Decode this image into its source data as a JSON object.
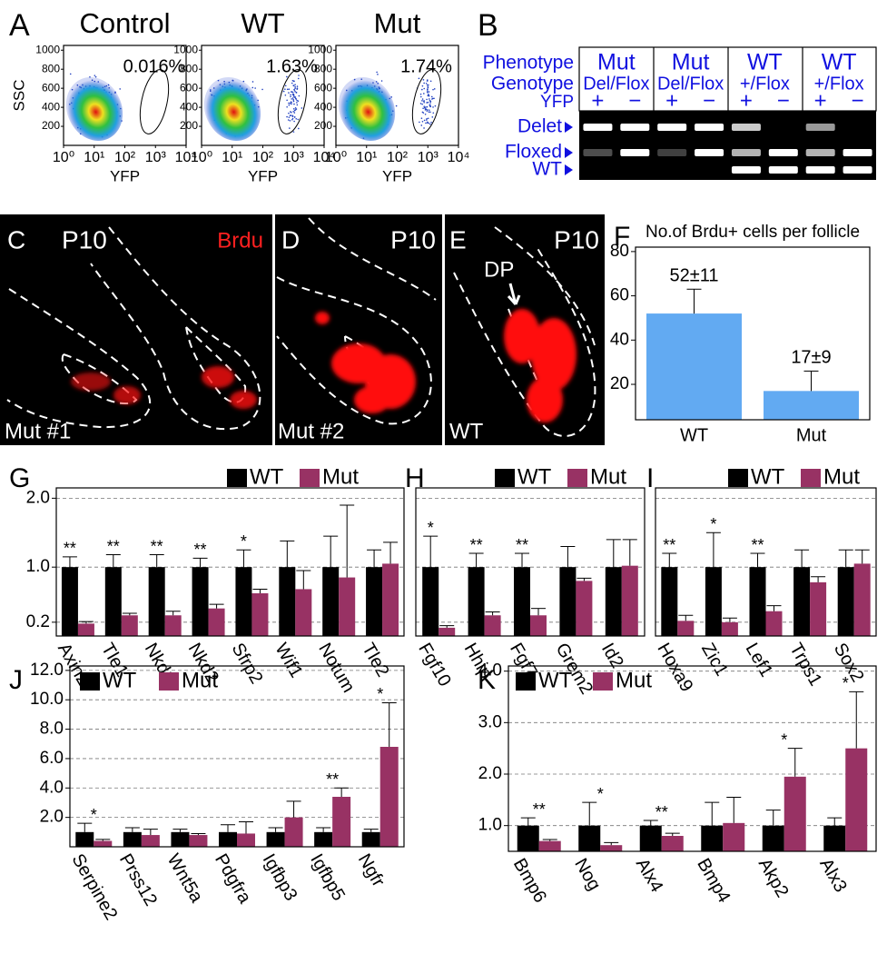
{
  "panel_labels": [
    "A",
    "B",
    "F",
    "G",
    "H",
    "I",
    "J",
    "K"
  ],
  "gel": {
    "row_labels": [
      "Phenotype",
      "Genotype",
      "YFP"
    ],
    "band_labels": [
      "Delet",
      "Floxed",
      "WT"
    ],
    "groups": [
      {
        "phenotype": "Mut",
        "genotype": "Del/Flox",
        "lanes": [
          "+",
          "−"
        ]
      },
      {
        "phenotype": "Mut",
        "genotype": "Del/Flox",
        "lanes": [
          "+",
          "−"
        ]
      },
      {
        "phenotype": "WT",
        "genotype": "+/Flox",
        "lanes": [
          "+",
          "−"
        ]
      },
      {
        "phenotype": "WT",
        "genotype": "+/Flox",
        "lanes": [
          "+",
          "−"
        ]
      }
    ]
  },
  "images": [
    {
      "label": "C",
      "stage": "P10",
      "stain": "Brdu",
      "sample": "Mut #1"
    },
    {
      "label": "D",
      "stage": "P10",
      "sample": "Mut #2"
    },
    {
      "label": "E",
      "stage": "P10",
      "marker": "DP",
      "sample": "WT"
    }
  ],
  "chart_data": [
    {
      "type": "scatter",
      "title": "Control",
      "annotation": "0.016%",
      "y_label": "SSC",
      "x_label": "YFP",
      "ylim": [
        0,
        1050
      ],
      "yticks": [
        200,
        400,
        600,
        800,
        1000
      ],
      "xscale": "log",
      "xlim": [
        1,
        10000
      ],
      "xticks": [
        {
          "value": 1,
          "label": "10⁰"
        },
        {
          "value": 10,
          "label": "10¹"
        },
        {
          "value": 100,
          "label": "10²"
        },
        {
          "value": 1000,
          "label": "10³"
        },
        {
          "value": 10000,
          "label": "10⁴"
        }
      ]
    },
    {
      "type": "scatter",
      "title": "WT",
      "annotation": "1.63%",
      "x_label": "YFP",
      "ylim": [
        0,
        1050
      ],
      "yticks": [
        200,
        400,
        600,
        800,
        1000
      ],
      "xscale": "log",
      "xlim": [
        1,
        10000
      ],
      "xticks": [
        {
          "value": 1,
          "label": "10⁰"
        },
        {
          "value": 10,
          "label": "10¹"
        },
        {
          "value": 100,
          "label": "10²"
        },
        {
          "value": 1000,
          "label": "10³"
        },
        {
          "value": 10000,
          "label": "10⁴"
        }
      ]
    },
    {
      "type": "scatter",
      "title": "Mut",
      "annotation": "1.74%",
      "x_label": "YFP",
      "ylim": [
        0,
        1050
      ],
      "yticks": [
        200,
        400,
        600,
        800,
        1000
      ],
      "xscale": "log",
      "xlim": [
        1,
        10000
      ],
      "xticks": [
        {
          "value": 1,
          "label": "10⁰"
        },
        {
          "value": 10,
          "label": "10¹"
        },
        {
          "value": 100,
          "label": "10²"
        },
        {
          "value": 1000,
          "label": "10³"
        },
        {
          "value": 10000,
          "label": "10⁴"
        }
      ]
    },
    {
      "type": "bar",
      "title": "No.of Brdu+ cells per follicle",
      "categories": [
        "WT",
        "Mut"
      ],
      "values": [
        52,
        17
      ],
      "errors": [
        11,
        9
      ],
      "value_labels": [
        "52±11",
        "17±9"
      ],
      "color": "#62aaf2",
      "ylim": [
        4,
        82
      ],
      "yticks": [
        20,
        40,
        60,
        80
      ]
    },
    {
      "type": "bar",
      "categories": [
        "Axin2",
        "Tle1",
        "Nkd1",
        "Nkd2",
        "Sfrp2",
        "Wif1",
        "Notum",
        "Tle2"
      ],
      "series": [
        {
          "name": "WT",
          "color": "#000000",
          "values": [
            1,
            1,
            1,
            1,
            1,
            1,
            1,
            1
          ],
          "errors": [
            0.15,
            0.18,
            0.18,
            0.13,
            0.25,
            0.38,
            0.45,
            0.25
          ]
        },
        {
          "name": "Mut",
          "color": "#983264",
          "values": [
            0.18,
            0.3,
            0.3,
            0.4,
            0.62,
            0.68,
            0.85,
            1.05
          ],
          "errors": [
            0.03,
            0.03,
            0.06,
            0.06,
            0.06,
            0.27,
            1.05,
            0.31
          ]
        }
      ],
      "significance": [
        "**",
        "**",
        "**",
        "**",
        "*",
        null,
        null,
        null
      ],
      "ylim": [
        0,
        2.15
      ],
      "yticks": [
        0.2,
        {
          "value": 1,
          "label": "1.0"
        },
        {
          "value": 2,
          "label": "2.0"
        }
      ],
      "grid": true
    },
    {
      "type": "bar",
      "categories": [
        "Fgf10",
        "Hhip",
        "Fgf7",
        "Grem2",
        "Id2"
      ],
      "series": [
        {
          "name": "WT",
          "color": "#000000",
          "values": [
            1,
            1,
            1,
            1,
            1
          ],
          "errors": [
            0.45,
            0.2,
            0.2,
            0.3,
            0.4
          ]
        },
        {
          "name": "Mut",
          "color": "#983264",
          "values": [
            0.12,
            0.3,
            0.3,
            0.8,
            1.02
          ],
          "errors": [
            0.03,
            0.05,
            0.1,
            0.04,
            0.38
          ]
        }
      ],
      "significance": [
        "*",
        "**",
        "**",
        null,
        null
      ],
      "ylim": [
        0,
        2.15
      ],
      "grid": true
    },
    {
      "type": "bar",
      "categories": [
        "Hoxa9",
        "Zic1",
        "Lef1",
        "Trps1",
        "Sox2"
      ],
      "series": [
        {
          "name": "WT",
          "color": "#000000",
          "values": [
            1,
            1,
            1,
            1,
            1
          ],
          "errors": [
            0.2,
            0.5,
            0.2,
            0.25,
            0.25
          ]
        },
        {
          "name": "Mut",
          "color": "#983264",
          "values": [
            0.22,
            0.2,
            0.36,
            0.78,
            1.05
          ],
          "errors": [
            0.08,
            0.06,
            0.08,
            0.08,
            0.2
          ]
        }
      ],
      "significance": [
        "**",
        "*",
        "**",
        null,
        null
      ],
      "ylim": [
        0,
        2.15
      ],
      "grid": true
    },
    {
      "type": "bar",
      "categories": [
        "Serpine2",
        "Prss12",
        "Wnt5a",
        "Pdgfra",
        "Igfbp3",
        "Igfbp5",
        "Ngfr"
      ],
      "series": [
        {
          "name": "WT",
          "color": "#000000",
          "values": [
            1,
            1,
            1,
            1,
            1,
            1,
            1
          ],
          "errors": [
            0.6,
            0.3,
            0.2,
            0.5,
            0.3,
            0.3,
            0.2
          ]
        },
        {
          "name": "Mut",
          "color": "#983264",
          "values": [
            0.4,
            0.8,
            0.8,
            0.9,
            2,
            3.4,
            6.8
          ],
          "errors": [
            0.1,
            0.4,
            0.1,
            0.8,
            1.1,
            0.6,
            3
          ]
        }
      ],
      "significance": [
        "*",
        null,
        null,
        null,
        null,
        "**",
        "*"
      ],
      "ylim": [
        0,
        12.3
      ],
      "yticks": [
        {
          "value": 2,
          "label": "2.0"
        },
        {
          "value": 4,
          "label": "4.0"
        },
        {
          "value": 6,
          "label": "6.0"
        },
        {
          "value": 8,
          "label": "8.0"
        },
        {
          "value": 10,
          "label": "10.0"
        },
        {
          "value": 12,
          "label": "12.0"
        }
      ],
      "grid": true
    },
    {
      "type": "bar",
      "categories": [
        "Bmp6",
        "Nog",
        "Alx4",
        "Bmp4",
        "Akp2",
        "Alx3"
      ],
      "series": [
        {
          "name": "WT",
          "color": "#000000",
          "values": [
            1,
            1,
            1,
            1,
            1,
            1
          ],
          "errors": [
            0.15,
            0.45,
            0.1,
            0.45,
            0.3,
            0.15
          ]
        },
        {
          "name": "Mut",
          "color": "#983264",
          "values": [
            0.7,
            0.62,
            0.8,
            1.05,
            1.95,
            2.5
          ],
          "errors": [
            0.03,
            0.05,
            0.05,
            0.5,
            0.55,
            1.1
          ]
        }
      ],
      "significance": [
        "**",
        "*",
        "**",
        null,
        "*",
        "*"
      ],
      "ylim": [
        0.5,
        4.1
      ],
      "yticks": [
        {
          "value": 1,
          "label": "1.0"
        },
        {
          "value": 2,
          "label": "2.0"
        },
        {
          "value": 3,
          "label": "3.0"
        },
        {
          "value": 4,
          "label": "4.0"
        }
      ],
      "grid": true
    }
  ]
}
